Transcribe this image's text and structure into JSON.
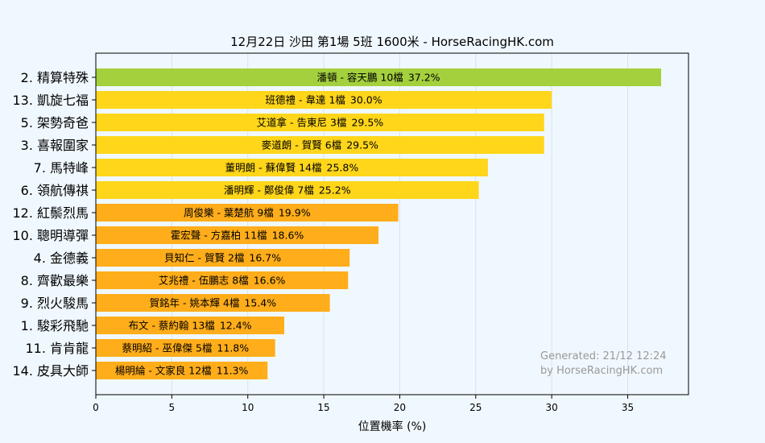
{
  "chart_data": {
    "type": "bar",
    "orientation": "horizontal",
    "title": "12月22日  沙田  第1場  5班  1600米 - HorseRacingHK.com",
    "xlabel": "位置機率 (%)",
    "ylabel": "",
    "xlim": [
      0,
      39
    ],
    "xticks": [
      0,
      5,
      10,
      15,
      20,
      25,
      30,
      35
    ],
    "grid": true,
    "colors": {
      "top": "#a4d03e",
      "high": "#ffd61a",
      "mid": "#ffad1a",
      "background": "#f0f8ff",
      "grid": "#d8e2ec"
    },
    "footer": [
      "Generated: 21/12 12:24",
      "by HorseRacingHK.com"
    ],
    "bars": [
      {
        "horse": "2. 精算特殊",
        "info": "潘頓 - 容天鵬 10檔",
        "pct": "37.2%",
        "value": 37.2,
        "tier": "top"
      },
      {
        "horse": "13. 凱旋七福",
        "info": "班德禮 - 韋達 1檔",
        "pct": "30.0%",
        "value": 30.0,
        "tier": "high"
      },
      {
        "horse": "5. 架勢奇爸",
        "info": "艾道拿 - 告東尼 3檔",
        "pct": "29.5%",
        "value": 29.5,
        "tier": "high"
      },
      {
        "horse": "3. 喜報圍家",
        "info": "麥道朗 - 賀賢 6檔",
        "pct": "29.5%",
        "value": 29.5,
        "tier": "high"
      },
      {
        "horse": "7. 馬特峰",
        "info": "董明朗 - 蘇偉賢 14檔",
        "pct": "25.8%",
        "value": 25.8,
        "tier": "high"
      },
      {
        "horse": "6. 領航傳祺",
        "info": "潘明輝 - 鄭俊偉 7檔",
        "pct": "25.2%",
        "value": 25.2,
        "tier": "high"
      },
      {
        "horse": "12. 紅鬃烈馬",
        "info": "周俊樂 - 葉楚航 9檔",
        "pct": "19.9%",
        "value": 19.9,
        "tier": "mid"
      },
      {
        "horse": "10. 聰明導彈",
        "info": "霍宏聲 - 方嘉柏 11檔",
        "pct": "18.6%",
        "value": 18.6,
        "tier": "mid"
      },
      {
        "horse": "4. 金德義",
        "info": "貝知仁 - 賀賢 2檔",
        "pct": "16.7%",
        "value": 16.7,
        "tier": "mid"
      },
      {
        "horse": "8. 齊歡最樂",
        "info": "艾兆禮 - 伍鵬志 8檔",
        "pct": "16.6%",
        "value": 16.6,
        "tier": "mid"
      },
      {
        "horse": "9. 烈火駿馬",
        "info": "賀銘年 - 姚本輝 4檔",
        "pct": "15.4%",
        "value": 15.4,
        "tier": "mid"
      },
      {
        "horse": "1. 駿彩飛馳",
        "info": "布文 - 蔡約翰 13檔",
        "pct": "12.4%",
        "value": 12.4,
        "tier": "mid"
      },
      {
        "horse": "11. 肯肯龍",
        "info": "蔡明紹 - 巫偉傑 5檔",
        "pct": "11.8%",
        "value": 11.8,
        "tier": "mid"
      },
      {
        "horse": "14. 皮具大師",
        "info": "楊明綸 - 文家良 12檔",
        "pct": "11.3%",
        "value": 11.3,
        "tier": "mid"
      }
    ]
  }
}
